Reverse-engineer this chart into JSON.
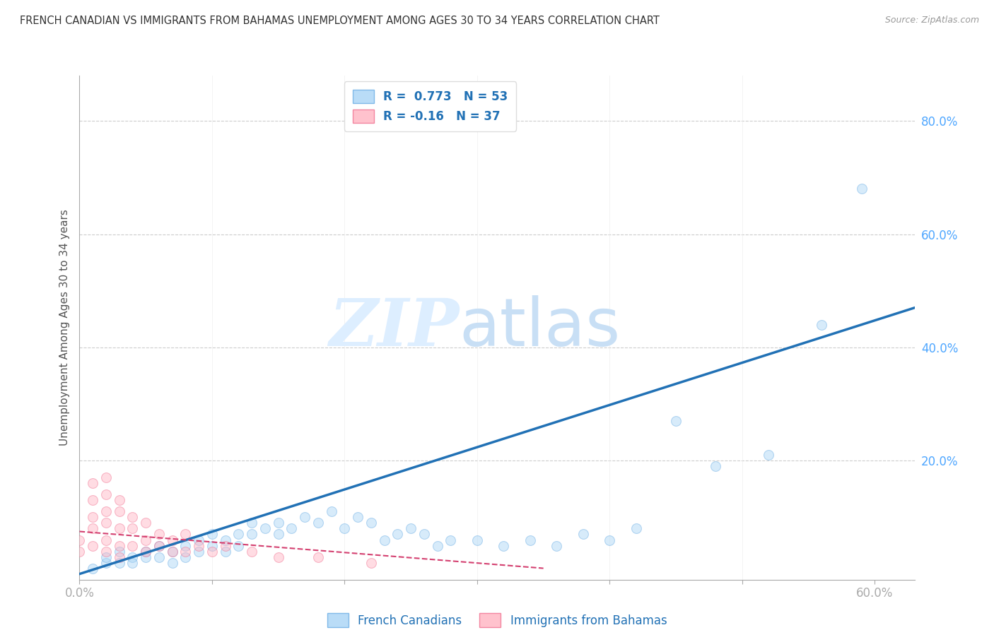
{
  "title": "FRENCH CANADIAN VS IMMIGRANTS FROM BAHAMAS UNEMPLOYMENT AMONG AGES 30 TO 34 YEARS CORRELATION CHART",
  "source": "Source: ZipAtlas.com",
  "ylabel": "Unemployment Among Ages 30 to 34 years",
  "xlim": [
    0.0,
    0.63
  ],
  "ylim": [
    -0.01,
    0.88
  ],
  "R_blue": 0.773,
  "N_blue": 53,
  "R_pink": -0.16,
  "N_pink": 37,
  "blue_scatter_x": [
    0.01,
    0.02,
    0.02,
    0.03,
    0.03,
    0.04,
    0.04,
    0.05,
    0.05,
    0.06,
    0.06,
    0.07,
    0.07,
    0.08,
    0.08,
    0.09,
    0.09,
    0.1,
    0.1,
    0.11,
    0.11,
    0.12,
    0.12,
    0.13,
    0.13,
    0.14,
    0.15,
    0.15,
    0.16,
    0.17,
    0.18,
    0.19,
    0.2,
    0.21,
    0.22,
    0.23,
    0.24,
    0.25,
    0.26,
    0.27,
    0.28,
    0.3,
    0.32,
    0.34,
    0.36,
    0.38,
    0.4,
    0.42,
    0.45,
    0.48,
    0.52,
    0.56,
    0.59
  ],
  "blue_scatter_y": [
    0.01,
    0.02,
    0.03,
    0.02,
    0.04,
    0.03,
    0.02,
    0.04,
    0.03,
    0.03,
    0.05,
    0.02,
    0.04,
    0.03,
    0.05,
    0.04,
    0.06,
    0.05,
    0.07,
    0.04,
    0.06,
    0.05,
    0.07,
    0.07,
    0.09,
    0.08,
    0.07,
    0.09,
    0.08,
    0.1,
    0.09,
    0.11,
    0.08,
    0.1,
    0.09,
    0.06,
    0.07,
    0.08,
    0.07,
    0.05,
    0.06,
    0.06,
    0.05,
    0.06,
    0.05,
    0.07,
    0.06,
    0.08,
    0.27,
    0.19,
    0.21,
    0.44,
    0.68
  ],
  "pink_scatter_x": [
    0.0,
    0.0,
    0.01,
    0.01,
    0.01,
    0.01,
    0.01,
    0.02,
    0.02,
    0.02,
    0.02,
    0.02,
    0.02,
    0.03,
    0.03,
    0.03,
    0.03,
    0.03,
    0.04,
    0.04,
    0.04,
    0.05,
    0.05,
    0.05,
    0.06,
    0.06,
    0.07,
    0.07,
    0.08,
    0.08,
    0.09,
    0.1,
    0.11,
    0.13,
    0.15,
    0.18,
    0.22
  ],
  "pink_scatter_y": [
    0.04,
    0.06,
    0.05,
    0.08,
    0.1,
    0.13,
    0.16,
    0.04,
    0.06,
    0.09,
    0.11,
    0.14,
    0.17,
    0.03,
    0.05,
    0.08,
    0.11,
    0.13,
    0.05,
    0.08,
    0.1,
    0.04,
    0.06,
    0.09,
    0.05,
    0.07,
    0.04,
    0.06,
    0.04,
    0.07,
    0.05,
    0.04,
    0.05,
    0.04,
    0.03,
    0.03,
    0.02
  ],
  "blue_line_x": [
    0.0,
    0.63
  ],
  "blue_line_y": [
    0.0,
    0.47
  ],
  "pink_line_x": [
    0.0,
    0.35
  ],
  "pink_line_y": [
    0.075,
    0.01
  ],
  "scatter_size": 100,
  "scatter_alpha": 0.45,
  "blue_color": "#a8d4f5",
  "blue_edge_color": "#6aade4",
  "blue_line_color": "#2171b5",
  "pink_color": "#ffb3c1",
  "pink_edge_color": "#f07090",
  "pink_line_color": "#d44070",
  "background_color": "#ffffff",
  "grid_color": "#cccccc",
  "title_color": "#333333",
  "axis_label_color": "#4da6ff",
  "watermark_zip": "ZIP",
  "watermark_atlas": "atlas",
  "watermark_color": "#ddeeff",
  "legend_label_color": "#2171b5"
}
